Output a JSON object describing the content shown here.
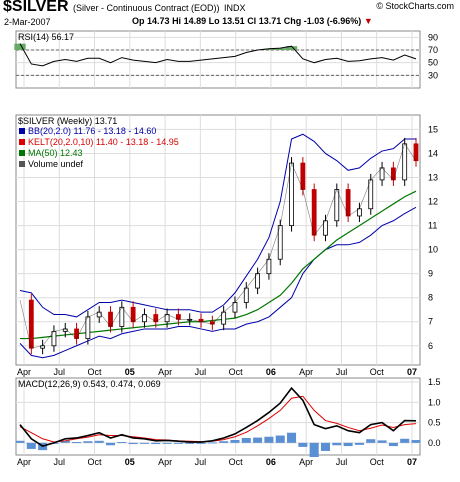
{
  "header": {
    "symbol": "$SILVER",
    "description": "(Silver - Continuous Contract (EOD))",
    "exchange": "INDX",
    "brand": "© StockCharts.com",
    "date": "2-Mar-2007",
    "open_label": "Op",
    "open": "14.73",
    "high_label": "Hi",
    "high": "14.89",
    "low_label": "Lo",
    "low": "13.51",
    "close_label": "Cl",
    "close": "13.71",
    "change_label": "Chg",
    "change": "-1.03 (-6.96%)",
    "change_arrow": "▼"
  },
  "colors": {
    "ma": "#007700",
    "bb": "#0000aa",
    "kelt": "#dd0000",
    "rsi_fill": "#66aa66",
    "macd_hist": "#5b8fd4",
    "signal": "#dd0000"
  },
  "chart_data": [
    {
      "type": "line",
      "title": "RSI(14) 56.17",
      "ylim": [
        10,
        100
      ],
      "ticks": [
        "90",
        "70",
        "50",
        "30"
      ],
      "levels": [
        70,
        30
      ],
      "x": [
        "2004-04",
        "2004-05",
        "2004-06",
        "2004-07",
        "2004-08",
        "2004-09",
        "2004-10",
        "2004-11",
        "2004-12",
        "2005-01",
        "2005-02",
        "2005-03",
        "2005-04",
        "2005-05",
        "2005-06",
        "2005-07",
        "2005-08",
        "2005-09",
        "2005-10",
        "2005-11",
        "2005-12",
        "2006-01",
        "2006-02",
        "2006-03",
        "2006-04",
        "2006-05",
        "2006-06",
        "2006-07",
        "2006-08",
        "2006-09",
        "2006-10",
        "2006-11",
        "2006-12",
        "2007-01",
        "2007-02",
        "2007-03"
      ],
      "series": [
        {
          "name": "RSI(14)",
          "values": [
            80,
            48,
            45,
            52,
            55,
            52,
            57,
            57,
            50,
            58,
            54,
            52,
            50,
            55,
            52,
            52,
            54,
            56,
            58,
            60,
            66,
            70,
            72,
            73,
            76,
            56,
            50,
            55,
            57,
            52,
            53,
            56,
            58,
            54,
            62,
            56
          ]
        }
      ]
    },
    {
      "type": "line",
      "title": "$SILVER (Weekly) 13.71",
      "ylim": [
        5.2,
        15.6
      ],
      "ticks": [
        "15",
        "14",
        "13",
        "12",
        "11",
        "10",
        "9",
        "8",
        "7",
        "6"
      ],
      "legend": [
        {
          "label": "BB(20,2.0) 11.76 - 13.18 - 14.60",
          "color": "#0000aa"
        },
        {
          "label": "KELT(20,2.0,10) 11.40 - 13.18 - 14.95",
          "color": "#dd0000"
        },
        {
          "label": "MA(50) 12.43",
          "color": "#007700"
        },
        {
          "label": "Volume undef",
          "color": "#555555"
        }
      ],
      "x": [
        "2004-04",
        "2004-05",
        "2004-06",
        "2004-07",
        "2004-08",
        "2004-09",
        "2004-10",
        "2004-11",
        "2004-12",
        "2005-01",
        "2005-02",
        "2005-03",
        "2005-04",
        "2005-05",
        "2005-06",
        "2005-07",
        "2005-08",
        "2005-09",
        "2005-10",
        "2005-11",
        "2005-12",
        "2006-01",
        "2006-02",
        "2006-03",
        "2006-04",
        "2006-05",
        "2006-06",
        "2006-07",
        "2006-08",
        "2006-09",
        "2006-10",
        "2006-11",
        "2006-12",
        "2007-01",
        "2007-02",
        "2007-03"
      ],
      "x_tick_labels": [
        "Apr",
        "Jul",
        "Oct",
        "05",
        "Apr",
        "Jul",
        "Oct",
        "06",
        "Apr",
        "Jul",
        "Oct",
        "07"
      ],
      "series": [
        {
          "name": "$SILVER",
          "values": [
            7.9,
            5.9,
            6.0,
            6.6,
            6.7,
            6.3,
            7.2,
            7.4,
            6.8,
            7.6,
            7.0,
            7.3,
            7.0,
            7.3,
            7.1,
            7.1,
            7.0,
            6.9,
            7.4,
            7.8,
            8.4,
            9.0,
            9.6,
            11.0,
            13.6,
            12.5,
            10.6,
            11.2,
            12.5,
            11.4,
            11.7,
            12.9,
            13.4,
            12.9,
            14.4,
            13.7
          ]
        },
        {
          "name": "MA(50)",
          "values": [
            6.3,
            6.3,
            6.35,
            6.4,
            6.45,
            6.5,
            6.55,
            6.6,
            6.65,
            6.7,
            6.75,
            6.8,
            6.85,
            6.9,
            6.95,
            7.0,
            7.0,
            7.05,
            7.1,
            7.15,
            7.3,
            7.5,
            7.8,
            8.1,
            8.6,
            9.2,
            9.6,
            10.0,
            10.4,
            10.7,
            11.0,
            11.3,
            11.6,
            11.9,
            12.2,
            12.43
          ]
        },
        {
          "name": "BB upper",
          "values": [
            8.3,
            8.2,
            7.6,
            7.3,
            7.3,
            7.2,
            7.5,
            7.8,
            7.8,
            7.9,
            7.8,
            7.7,
            7.6,
            7.5,
            7.5,
            7.5,
            7.4,
            7.4,
            7.7,
            8.2,
            8.9,
            9.6,
            10.5,
            12.0,
            14.6,
            14.8,
            14.5,
            14.0,
            13.7,
            13.3,
            13.4,
            13.8,
            14.1,
            14.2,
            14.6,
            14.6
          ]
        },
        {
          "name": "BB lower",
          "values": [
            6.1,
            5.6,
            5.5,
            5.6,
            5.8,
            6.0,
            6.2,
            6.4,
            6.3,
            6.5,
            6.6,
            6.7,
            6.7,
            6.7,
            6.8,
            6.8,
            6.7,
            6.6,
            6.7,
            6.7,
            6.9,
            7.0,
            7.2,
            7.6,
            8.0,
            9.0,
            9.6,
            10.0,
            10.2,
            10.2,
            10.3,
            10.6,
            11.0,
            11.2,
            11.5,
            11.76
          ]
        }
      ]
    },
    {
      "type": "line",
      "title": "MACD(12,26,9) 0.543, 0.474, 0.069",
      "ylim": [
        -0.3,
        1.6
      ],
      "ticks": [
        "1.5",
        "1.0",
        "0.5",
        "0.0"
      ],
      "x": [
        "2004-04",
        "2004-05",
        "2004-06",
        "2004-07",
        "2004-08",
        "2004-09",
        "2004-10",
        "2004-11",
        "2004-12",
        "2005-01",
        "2005-02",
        "2005-03",
        "2005-04",
        "2005-05",
        "2005-06",
        "2005-07",
        "2005-08",
        "2005-09",
        "2005-10",
        "2005-11",
        "2005-12",
        "2006-01",
        "2006-02",
        "2006-03",
        "2006-04",
        "2006-05",
        "2006-06",
        "2006-07",
        "2006-08",
        "2006-09",
        "2006-10",
        "2006-11",
        "2006-12",
        "2007-01",
        "2007-02",
        "2007-03"
      ],
      "x_tick_labels": [
        "Apr",
        "Jul",
        "Oct",
        "05",
        "Apr",
        "Jul",
        "Oct",
        "06",
        "Apr",
        "Jul",
        "Oct",
        "07"
      ],
      "series": [
        {
          "name": "MACD",
          "values": [
            0.45,
            0.1,
            -0.08,
            0.0,
            0.1,
            0.12,
            0.18,
            0.25,
            0.12,
            0.2,
            0.12,
            0.1,
            0.05,
            0.06,
            0.04,
            0.02,
            0.02,
            0.05,
            0.12,
            0.22,
            0.38,
            0.55,
            0.75,
            0.98,
            1.35,
            1.05,
            0.45,
            0.35,
            0.42,
            0.3,
            0.25,
            0.45,
            0.5,
            0.3,
            0.55,
            0.543
          ]
        },
        {
          "name": "Signal",
          "values": [
            0.4,
            0.25,
            0.1,
            0.02,
            0.05,
            0.1,
            0.14,
            0.2,
            0.18,
            0.18,
            0.15,
            0.12,
            0.08,
            0.07,
            0.05,
            0.04,
            0.03,
            0.04,
            0.08,
            0.15,
            0.26,
            0.42,
            0.6,
            0.8,
            1.1,
            1.15,
            0.8,
            0.55,
            0.48,
            0.38,
            0.3,
            0.36,
            0.44,
            0.38,
            0.45,
            0.474
          ]
        },
        {
          "name": "Histogram",
          "values": [
            0.05,
            -0.15,
            -0.18,
            -0.02,
            0.05,
            0.02,
            0.04,
            0.05,
            -0.06,
            0.02,
            -0.03,
            -0.02,
            -0.03,
            -0.01,
            -0.01,
            -0.02,
            -0.01,
            0.01,
            0.04,
            0.07,
            0.12,
            0.13,
            0.15,
            0.18,
            0.25,
            -0.1,
            -0.35,
            -0.2,
            -0.06,
            -0.08,
            -0.05,
            0.09,
            0.06,
            -0.08,
            0.1,
            0.069
          ]
        }
      ]
    }
  ]
}
